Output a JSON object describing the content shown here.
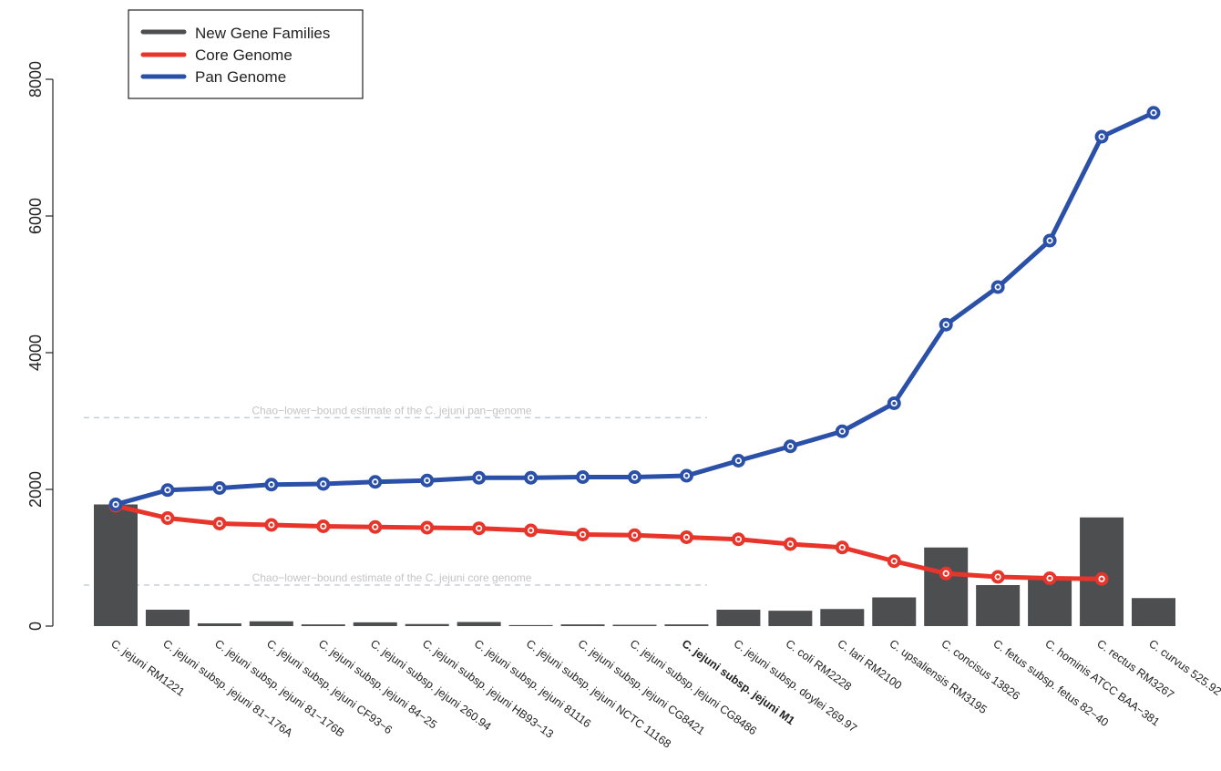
{
  "chart_data": {
    "type": "bar",
    "xlabel": "",
    "ylabel": "",
    "ylim": [
      0,
      8000
    ],
    "yticks": [
      0,
      2000,
      4000,
      6000,
      8000
    ],
    "grid": false,
    "legend_position": "top-left",
    "categories": [
      "C. jejuni RM1221",
      "C. jejuni subsp. jejuni 81−176A",
      "C. jejuni subsp. jejuni 81−176B",
      "C. jejuni subsp. jejuni CF93−6",
      "C. jejuni subsp. jejuni 84−25",
      "C. jejuni subsp. jejuni 260.94",
      "C. jejuni subsp. jejuni HB93−13",
      "C. jejuni subsp. jejuni 81116",
      "C. jejuni subsp. jejuni NCTC 11168",
      "C. jejuni subsp. jejuni CG8421",
      "C. jejuni subsp. jejuni CG8486",
      "C. jejuni subsp. jejuni M1",
      "C. jejuni subsp. doylei 269.97",
      "C. coli RM2228",
      "C. lari RM2100",
      "C. upsaliensis RM3195",
      "C. concisus 13826",
      "C. fetus subsp. fetus 82−40",
      "C. hominis ATCC BAA−381",
      "C. rectus RM3267",
      "C. curvus 525.92"
    ],
    "bold_category": "C. jejuni subsp. jejuni M1",
    "series": [
      {
        "name": "New Gene Families",
        "kind": "bar",
        "color": "#4d4e50",
        "values": [
          1780,
          240,
          40,
          70,
          25,
          55,
          30,
          60,
          15,
          25,
          20,
          25,
          240,
          225,
          250,
          420,
          1150,
          600,
          690,
          1590,
          410
        ]
      },
      {
        "name": "Core Genome",
        "kind": "line",
        "color": "#e8352b",
        "values": [
          1760,
          1580,
          1500,
          1480,
          1460,
          1450,
          1440,
          1430,
          1400,
          1340,
          1330,
          1300,
          1270,
          1200,
          1150,
          950,
          770,
          720,
          700,
          690,
          null
        ]
      },
      {
        "name": "Pan Genome",
        "kind": "line",
        "color": "#2b50a8",
        "values": [
          1780,
          1990,
          2020,
          2070,
          2080,
          2110,
          2130,
          2170,
          2170,
          2180,
          2180,
          2200,
          2420,
          2630,
          2850,
          3260,
          4410,
          4960,
          5640,
          7160,
          7510
        ]
      }
    ],
    "reference_lines": [
      {
        "label": "Chao−lower−bound estimate of the C. jejuni pan−genome",
        "value": 3050,
        "color": "#b9c8d1"
      },
      {
        "label": "Chao−lower−bound estimate of the C. jejuni core genome",
        "value": 600,
        "color": "#b9c8d1"
      }
    ]
  }
}
